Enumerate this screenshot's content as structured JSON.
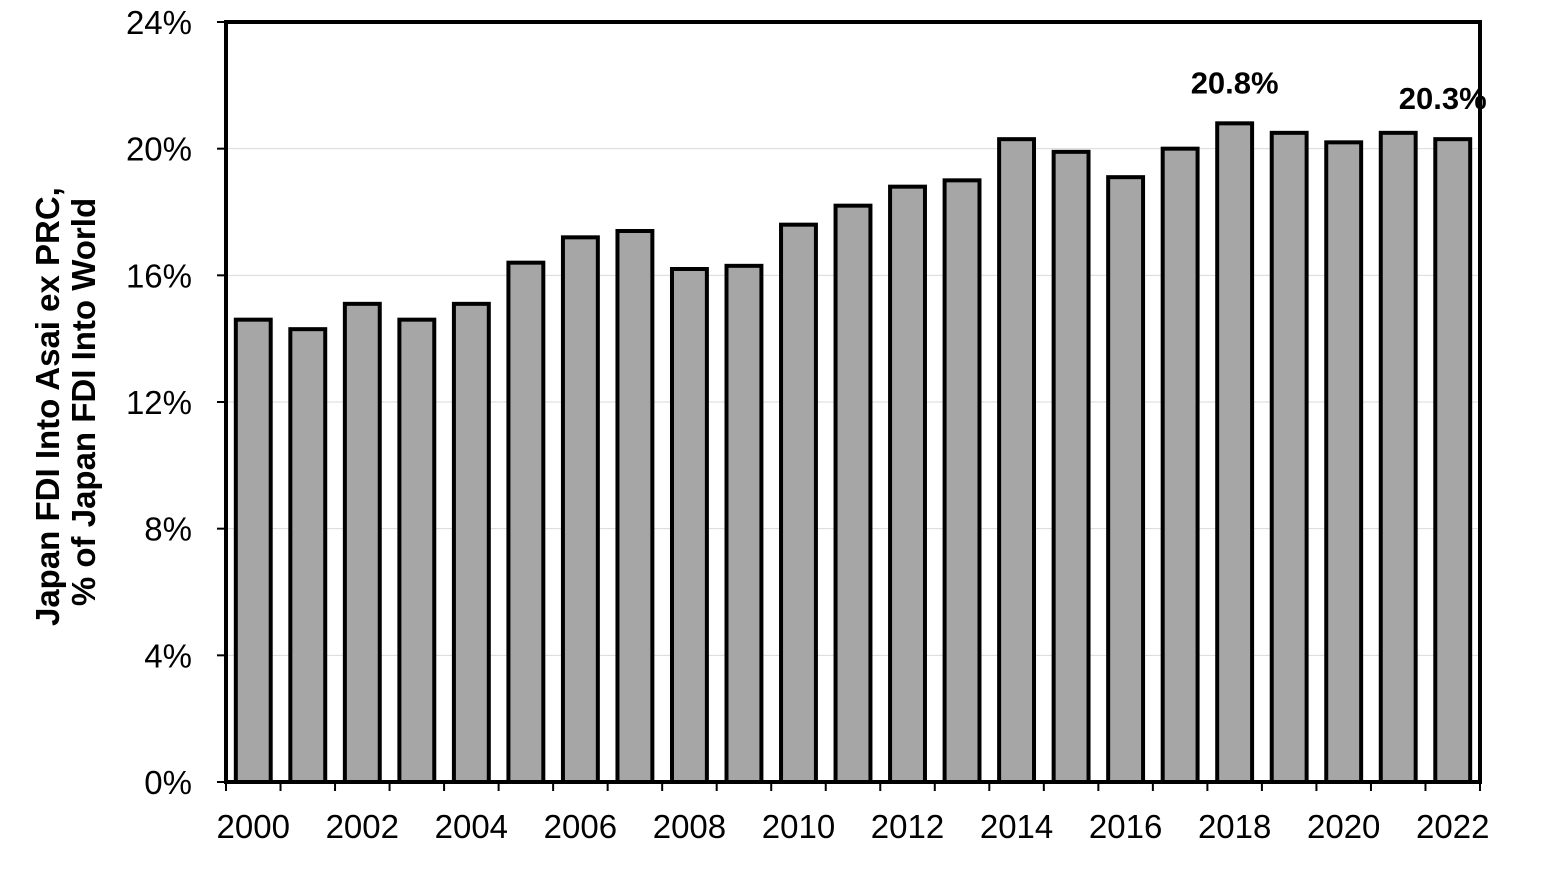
{
  "chart_data": {
    "type": "bar",
    "title": "",
    "xlabel": "",
    "ylabel_lines": [
      "Japan FDI Into Asai ex PRC,",
      "% of Japan FDI Into World"
    ],
    "ylim": [
      0,
      24
    ],
    "yticks": [
      0,
      4,
      8,
      12,
      16,
      20,
      24
    ],
    "ytick_labels": [
      "0%",
      "4%",
      "8%",
      "12%",
      "16%",
      "20%",
      "24%"
    ],
    "grid": true,
    "categories": [
      "2000",
      "2001",
      "2002",
      "2003",
      "2004",
      "2005",
      "2006",
      "2007",
      "2008",
      "2009",
      "2010",
      "2011",
      "2012",
      "2013",
      "2014",
      "2015",
      "2016",
      "2017",
      "2018",
      "2019",
      "2020",
      "2021",
      "2022"
    ],
    "xtick_labels": [
      "2000",
      "2002",
      "2004",
      "2006",
      "2008",
      "2010",
      "2012",
      "2014",
      "2016",
      "2018",
      "2020",
      "2022"
    ],
    "values": [
      14.6,
      14.3,
      15.1,
      14.6,
      15.1,
      16.4,
      17.2,
      17.4,
      16.2,
      16.3,
      17.6,
      18.2,
      18.8,
      19.0,
      20.3,
      19.9,
      19.1,
      20.0,
      20.8,
      20.5,
      20.2,
      20.5,
      20.3
    ],
    "bar_color": "#a6a6a6",
    "annotations": [
      {
        "category": "2018",
        "text": "20.8%"
      },
      {
        "category": "2022",
        "text": "20.3%"
      }
    ]
  }
}
